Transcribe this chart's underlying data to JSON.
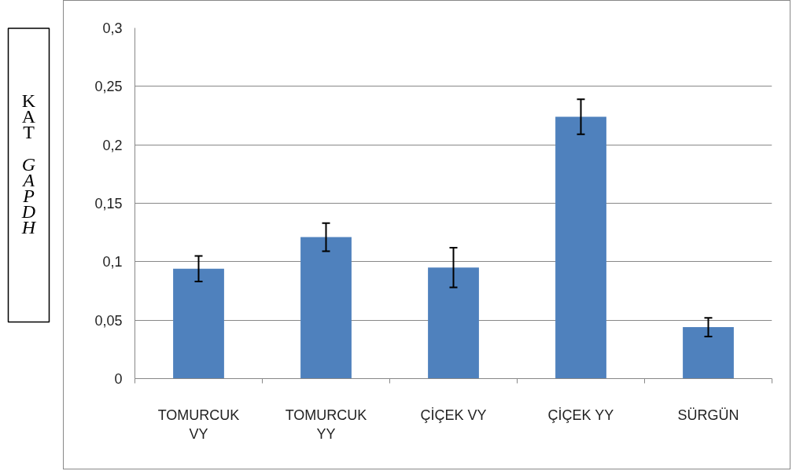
{
  "chart_data": {
    "type": "bar",
    "ylabel": "KAT GAPDH",
    "categories": [
      "TOMURCUK VY",
      "TOMURCUK YY",
      "ÇİÇEK VY",
      "ÇİÇEK YY",
      "SÜRGÜN"
    ],
    "values": [
      0.094,
      0.121,
      0.095,
      0.224,
      0.044
    ],
    "errors": [
      0.011,
      0.012,
      0.017,
      0.015,
      0.008
    ],
    "color": "#4f81bd",
    "ylim": [
      0,
      0.3
    ],
    "yticks": [
      {
        "value": 0,
        "label": "0"
      },
      {
        "value": 0.05,
        "label": "0,05"
      },
      {
        "value": 0.1,
        "label": "0,1"
      },
      {
        "value": 0.15,
        "label": "0,15"
      },
      {
        "value": 0.2,
        "label": "0,2"
      },
      {
        "value": 0.25,
        "label": "0,25"
      },
      {
        "value": 0.3,
        "label": "0,3"
      }
    ],
    "grid": "y"
  }
}
